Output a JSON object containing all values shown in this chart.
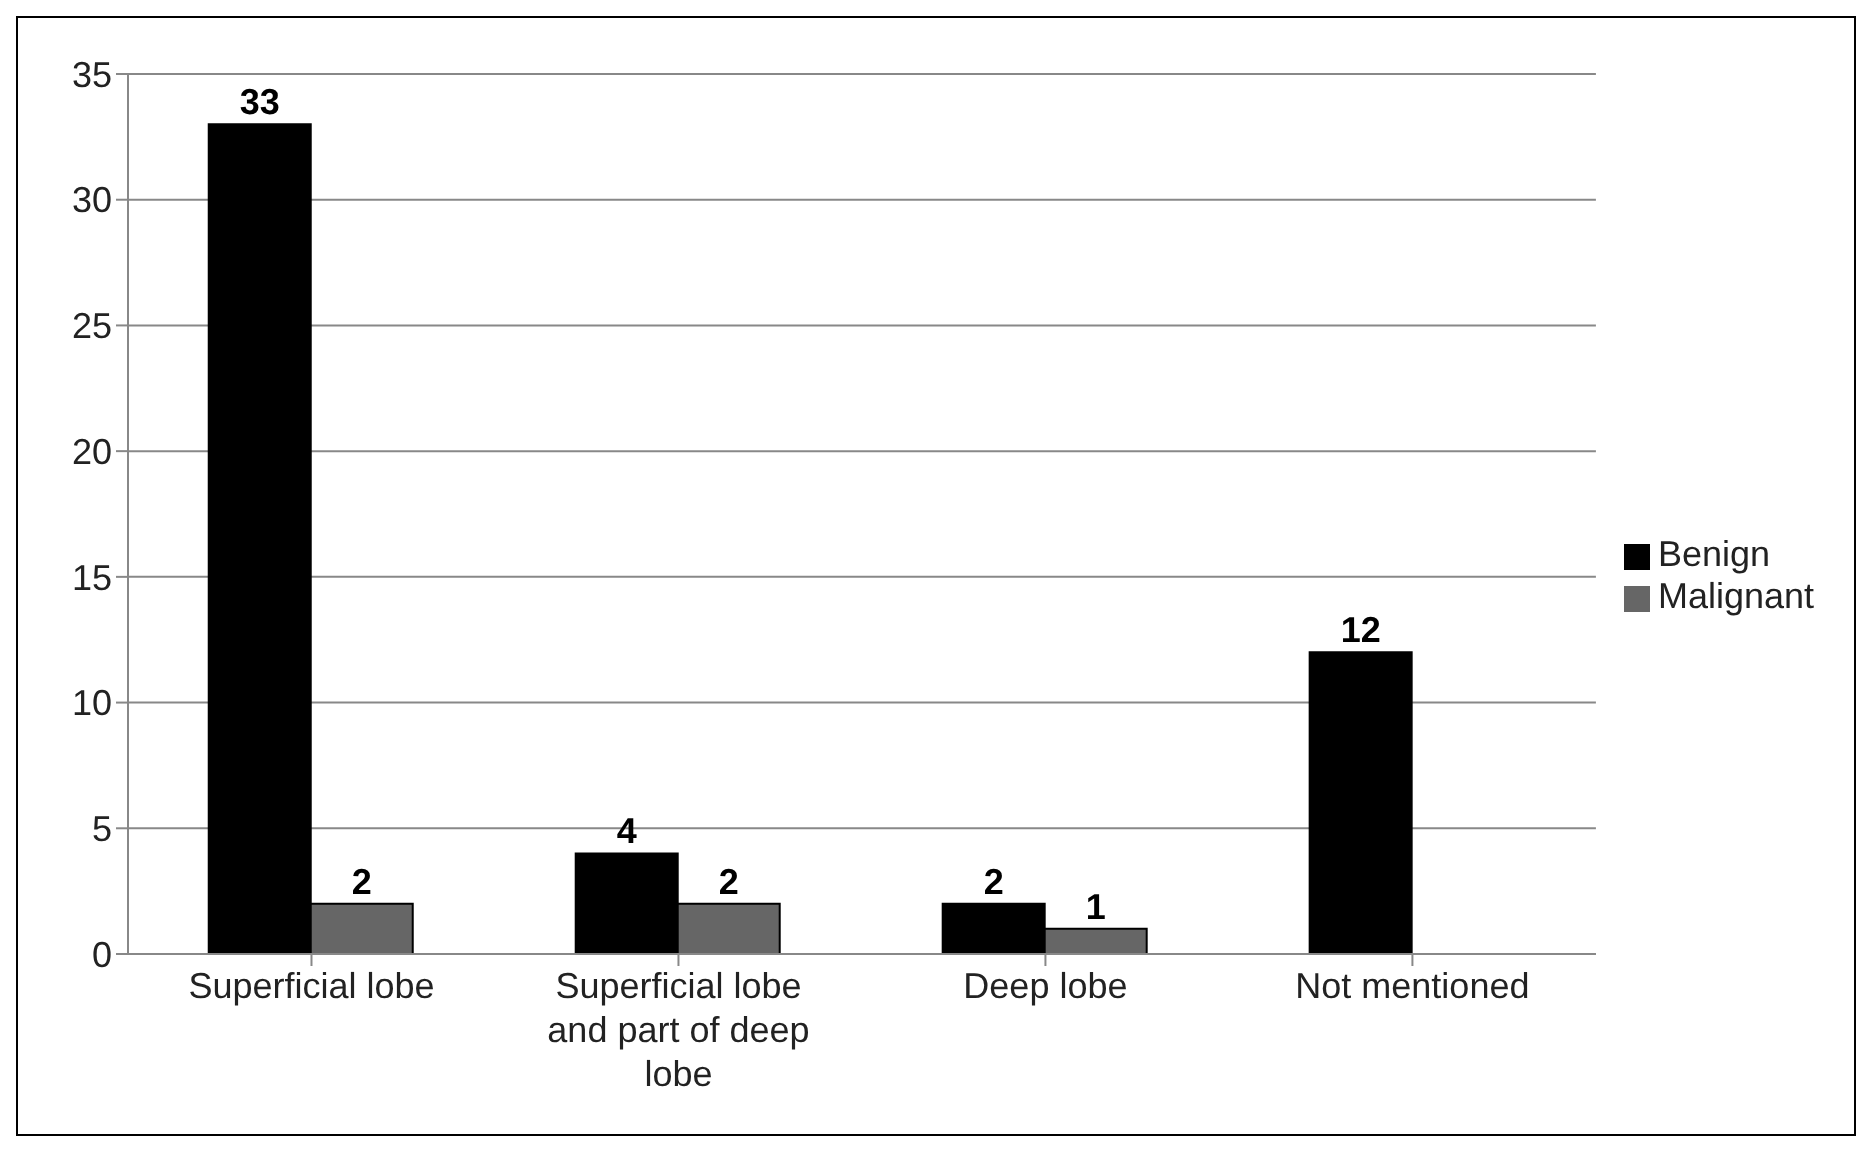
{
  "chart_data": {
    "type": "bar",
    "categories": [
      "Superficial lobe",
      "Superficial lobe and part of deep lobe",
      "Deep lobe",
      "Not mentioned"
    ],
    "series": [
      {
        "name": "Benign",
        "color": "#000000",
        "values": [
          33,
          4,
          2,
          12
        ]
      },
      {
        "name": "Malignant",
        "color": "#666666",
        "values": [
          2,
          2,
          1,
          null
        ]
      }
    ],
    "ylim": [
      0,
      35
    ],
    "yticks": [
      0,
      5,
      10,
      15,
      20,
      25,
      30,
      35
    ],
    "grid": "y",
    "legend": "right",
    "data_labels": true
  }
}
